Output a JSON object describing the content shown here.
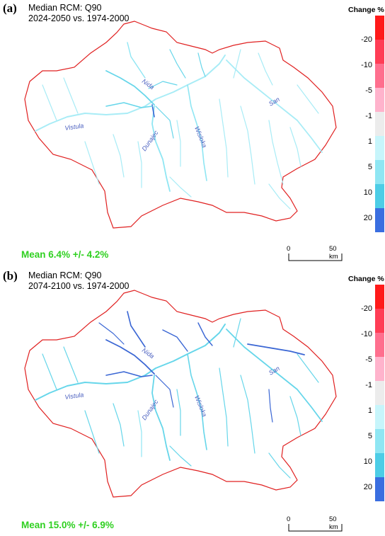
{
  "panels": [
    {
      "label": "(a)",
      "title_line1": "Median RCM: Q90",
      "title_line2": "2024-2050 vs. 1974-2000",
      "mean": "Mean 6.4% +/- 4.2%"
    },
    {
      "label": "(b)",
      "title_line1": "Median RCM: Q90",
      "title_line2": "2074-2100 vs. 1974-2000",
      "mean": "Mean 15.0% +/- 6.9%"
    }
  ],
  "legend": {
    "title": "Change %",
    "labels": [
      "-20",
      "-10",
      "-5",
      "-1",
      "1",
      "5",
      "10",
      "20"
    ],
    "colors": [
      "#ff1a1a",
      "#ff3d55",
      "#ff6f8e",
      "#ffb3cc",
      "#ececec",
      "#c7f5fb",
      "#8fe6f3",
      "#4dcde6",
      "#3a6ee0"
    ]
  },
  "scale_bar": {
    "start": "0",
    "end": "50 km"
  },
  "rivers": {
    "vistula": "Vistula",
    "nida": "Nida",
    "dunajec": "Dunajec",
    "wisloka": "Wisloka",
    "san": "San"
  },
  "colors": {
    "border": "#e02020",
    "river_low": "#a8ecf6",
    "river_mid": "#66d6ea",
    "river_high": "#3a66d4",
    "mean_text": "#2fd020"
  }
}
